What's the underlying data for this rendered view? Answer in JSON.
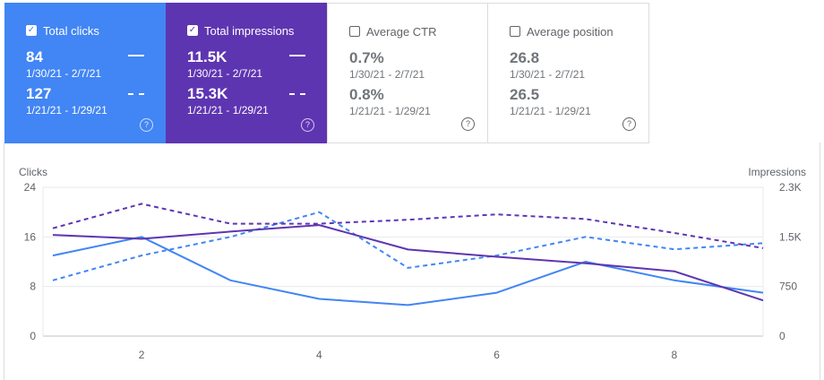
{
  "cards": {
    "clicks": {
      "label": "Total clicks",
      "checked": true,
      "value1": "84",
      "range1": "1/30/21 - 2/7/21",
      "value2": "127",
      "range2": "1/21/21 - 1/29/21",
      "help_icon": "help-circle-icon",
      "color": "#4285f4"
    },
    "impressions": {
      "label": "Total impressions",
      "checked": true,
      "value1": "11.5K",
      "range1": "1/30/21 - 2/7/21",
      "value2": "15.3K",
      "range2": "1/21/21 - 1/29/21",
      "help_icon": "help-circle-icon",
      "color": "#5e35b1"
    },
    "ctr": {
      "label": "Average CTR",
      "checked": false,
      "value1": "0.7%",
      "range1": "1/30/21 - 2/7/21",
      "value2": "0.8%",
      "range2": "1/21/21 - 1/29/21",
      "help_icon": "help-circle-icon"
    },
    "position": {
      "label": "Average position",
      "checked": false,
      "value1": "26.8",
      "range1": "1/30/21 - 2/7/21",
      "value2": "26.5",
      "range2": "1/21/21 - 1/29/21",
      "help_icon": "help-circle-icon"
    }
  },
  "check_glyph": "✓",
  "help_glyph": "?",
  "chart_data": {
    "type": "line",
    "x": [
      1,
      2,
      3,
      4,
      5,
      6,
      7,
      8,
      9
    ],
    "x_ticks": [
      "2",
      "4",
      "6",
      "8"
    ],
    "x_tick_values": [
      2,
      4,
      6,
      8
    ],
    "y_left": {
      "label": "Clicks",
      "ticks": [
        "0",
        "8",
        "16",
        "24"
      ],
      "tick_values": [
        0,
        8,
        16,
        24
      ],
      "range": [
        0,
        24
      ]
    },
    "y_right": {
      "label": "Impressions",
      "ticks": [
        "0",
        "750",
        "1.5K",
        "2.3K"
      ],
      "tick_values": [
        0,
        750,
        1500,
        2250
      ],
      "range": [
        0,
        2250
      ]
    },
    "grid": true,
    "series": [
      {
        "metric": "clicks",
        "period": "1/30/21 - 2/7/21",
        "axis": "left",
        "style": "solid",
        "color": "#4285f4",
        "values": [
          13,
          16,
          9,
          6,
          5,
          7,
          12,
          9,
          7
        ]
      },
      {
        "metric": "clicks",
        "period": "1/21/21 - 1/29/21",
        "axis": "left",
        "style": "dashed",
        "color": "#4285f4",
        "values": [
          9,
          13,
          16,
          20,
          11,
          13,
          16,
          14,
          15
        ]
      },
      {
        "metric": "impressions",
        "period": "1/30/21 - 2/7/21",
        "axis": "right",
        "style": "solid",
        "color": "#5e35b1",
        "values": [
          1530,
          1470,
          1580,
          1680,
          1310,
          1200,
          1100,
          980,
          540
        ]
      },
      {
        "metric": "impressions",
        "period": "1/21/21 - 1/29/21",
        "axis": "right",
        "style": "dashed",
        "color": "#5e35b1",
        "values": [
          1630,
          2000,
          1700,
          1700,
          1760,
          1840,
          1770,
          1560,
          1330
        ]
      }
    ]
  }
}
